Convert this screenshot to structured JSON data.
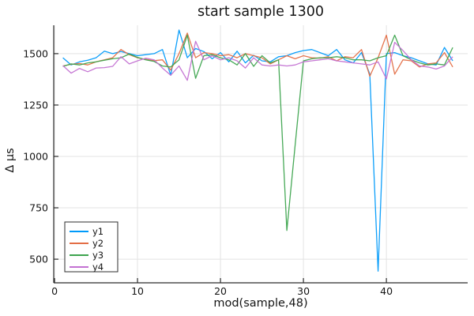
{
  "chart_data": {
    "type": "line",
    "title": "start sample 1300",
    "xlabel": "mod(sample,48)",
    "ylabel": "Δ μs",
    "grid": true,
    "legend_position": "bottom-left",
    "x_ticks": [
      0,
      10,
      20,
      30,
      40
    ],
    "y_ticks": [
      500,
      750,
      1000,
      1250,
      1500
    ],
    "xlim": [
      -0.1,
      49.8
    ],
    "ylim": [
      385,
      1638
    ],
    "x": [
      1,
      2,
      3,
      4,
      5,
      6,
      7,
      8,
      9,
      10,
      11,
      12,
      13,
      14,
      15,
      16,
      17,
      18,
      19,
      20,
      21,
      22,
      23,
      24,
      25,
      26,
      27,
      28,
      29,
      30,
      31,
      32,
      33,
      34,
      35,
      36,
      37,
      38,
      39,
      40,
      41,
      42,
      43,
      44,
      45,
      46,
      47,
      48
    ],
    "series": [
      {
        "name": "y1",
        "color": "#009AFA",
        "values": [
          1480,
          1445,
          1460,
          1468,
          1480,
          1512,
          1500,
          1510,
          1500,
          1490,
          1495,
          1500,
          1520,
          1395,
          1615,
          1480,
          1525,
          1510,
          1475,
          1505,
          1460,
          1512,
          1455,
          1492,
          1465,
          1460,
          1485,
          1490,
          1505,
          1515,
          1520,
          1505,
          1490,
          1520,
          1470,
          1455,
          1505,
          1400,
          442,
          1500,
          1505,
          1490,
          1480,
          1465,
          1450,
          1445,
          1530,
          1465
        ]
      },
      {
        "name": "y2",
        "color": "#E36E46",
        "values": [
          1440,
          1448,
          1452,
          1445,
          1460,
          1470,
          1480,
          1520,
          1495,
          1480,
          1472,
          1466,
          1470,
          1420,
          1500,
          1600,
          1480,
          1505,
          1500,
          1490,
          1495,
          1480,
          1500,
          1490,
          1480,
          1450,
          1470,
          1490,
          1475,
          1490,
          1480,
          1478,
          1485,
          1465,
          1485,
          1480,
          1520,
          1390,
          1480,
          1590,
          1400,
          1470,
          1465,
          1435,
          1450,
          1455,
          1505,
          1435
        ]
      },
      {
        "name": "y3",
        "color": "#3DA44E",
        "values": [
          1438,
          1450,
          1445,
          1455,
          1460,
          1468,
          1475,
          1480,
          1498,
          1482,
          1470,
          1462,
          1440,
          1435,
          1470,
          1590,
          1380,
          1490,
          1495,
          1480,
          1470,
          1445,
          1500,
          1438,
          1490,
          1455,
          1470,
          640,
          1055,
          1465,
          1475,
          1480,
          1480,
          1485,
          1480,
          1470,
          1470,
          1465,
          1480,
          1490,
          1590,
          1490,
          1470,
          1455,
          1445,
          1450,
          1445,
          1530
        ]
      },
      {
        "name": "y4",
        "color": "#C371D2",
        "values": [
          1442,
          1405,
          1428,
          1412,
          1430,
          1432,
          1438,
          1485,
          1450,
          1465,
          1478,
          1470,
          1430,
          1395,
          1440,
          1370,
          1560,
          1470,
          1490,
          1470,
          1480,
          1465,
          1430,
          1480,
          1445,
          1440,
          1445,
          1440,
          1445,
          1460,
          1465,
          1470,
          1475,
          1465,
          1460,
          1455,
          1450,
          1445,
          1460,
          1377,
          1555,
          1515,
          1470,
          1440,
          1435,
          1425,
          1440,
          1485
        ]
      }
    ],
    "colors": {
      "grid": "#E3E3E3",
      "spine": "#2C2C2C",
      "text": "#151515",
      "background": "#FFFFFF"
    }
  }
}
